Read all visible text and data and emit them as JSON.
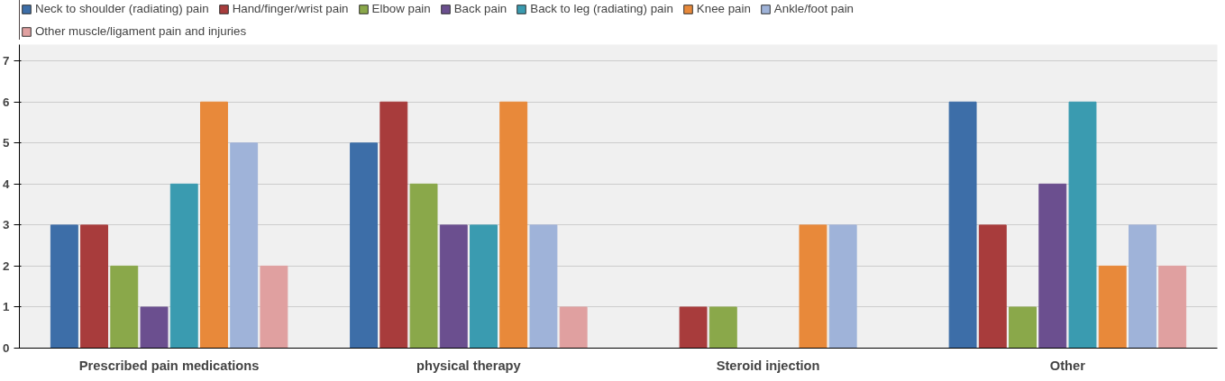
{
  "chart_data": {
    "type": "bar",
    "categories": [
      "Prescribed pain medications",
      "physical therapy",
      "Steroid injection",
      "Other"
    ],
    "series": [
      {
        "name": "Neck to shoulder (radiating) pain",
        "color": "#3d6ea8",
        "values": [
          3,
          5,
          0,
          6
        ]
      },
      {
        "name": "Hand/finger/wrist pain",
        "color": "#a83c3c",
        "values": [
          3,
          6,
          1,
          3
        ]
      },
      {
        "name": "Elbow pain",
        "color": "#8aa84a",
        "values": [
          2,
          4,
          1,
          1
        ]
      },
      {
        "name": "Back pain",
        "color": "#6b4f8f",
        "values": [
          1,
          3,
          0,
          4
        ]
      },
      {
        "name": "Back to leg (radiating) pain",
        "color": "#3a9bb0",
        "values": [
          4,
          3,
          0,
          6
        ]
      },
      {
        "name": "Knee pain",
        "color": "#e8893a",
        "values": [
          6,
          6,
          3,
          2
        ]
      },
      {
        "name": "Ankle/foot pain",
        "color": "#9fb3d9",
        "values": [
          5,
          3,
          3,
          3
        ]
      },
      {
        "name": "Other muscle/ligament pain and injuries",
        "color": "#e0a0a0",
        "values": [
          2,
          1,
          0,
          2
        ]
      }
    ],
    "ylim": [
      0,
      7.4
    ],
    "yticks": [
      0,
      1,
      2,
      3,
      4,
      5,
      6,
      7
    ],
    "grid": "y",
    "legend": "top left"
  }
}
